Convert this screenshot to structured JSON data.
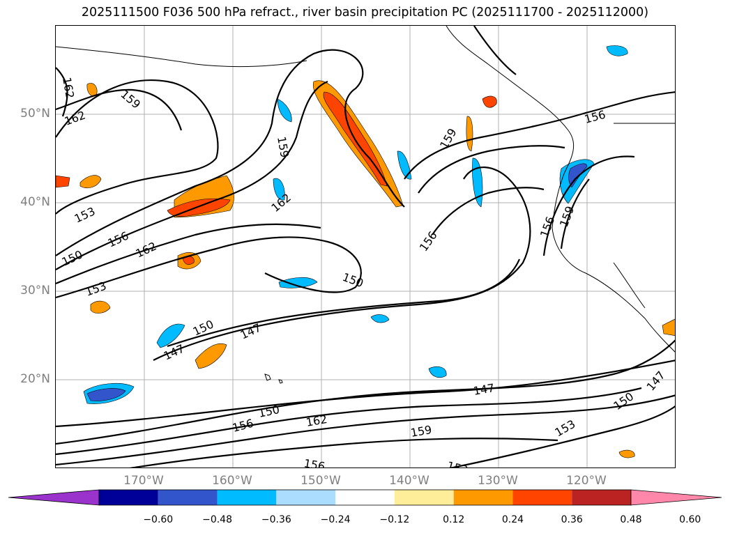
{
  "title": "2025111500 F036 500 hPa refract., river basin precipitation PC (2025111700 - 2025112000)",
  "map": {
    "lat_labels": [
      "50°N",
      "40°N",
      "30°N",
      "20°N"
    ],
    "lon_labels": [
      "170°W",
      "160°W",
      "150°W",
      "140°W",
      "130°W",
      "120°W"
    ],
    "contour_labels": [
      "162",
      "159",
      "162",
      "159",
      "153",
      "156",
      "162",
      "150",
      "153",
      "147",
      "150",
      "147",
      "150",
      "156",
      "162",
      "159",
      "147",
      "150",
      "153",
      "147",
      "156",
      "153",
      "150",
      "156",
      "159",
      "156",
      "162",
      "159",
      "156"
    ],
    "grid": true,
    "contour_field": "500 hPa refractivity",
    "shaded_field": "river basin precipitation PC"
  },
  "colorbar": {
    "ticks": [
      "−0.60",
      "−0.48",
      "−0.36",
      "−0.24",
      "−0.12",
      "0.12",
      "0.24",
      "0.36",
      "0.48",
      "0.60"
    ],
    "colors": [
      "#9933cc",
      "#000099",
      "#3355cc",
      "#00bbff",
      "#aaddff",
      "#ffffff",
      "#ffee99",
      "#ff9900",
      "#ff4400",
      "#bb2222",
      "#ff88aa"
    ],
    "extend": "both"
  }
}
